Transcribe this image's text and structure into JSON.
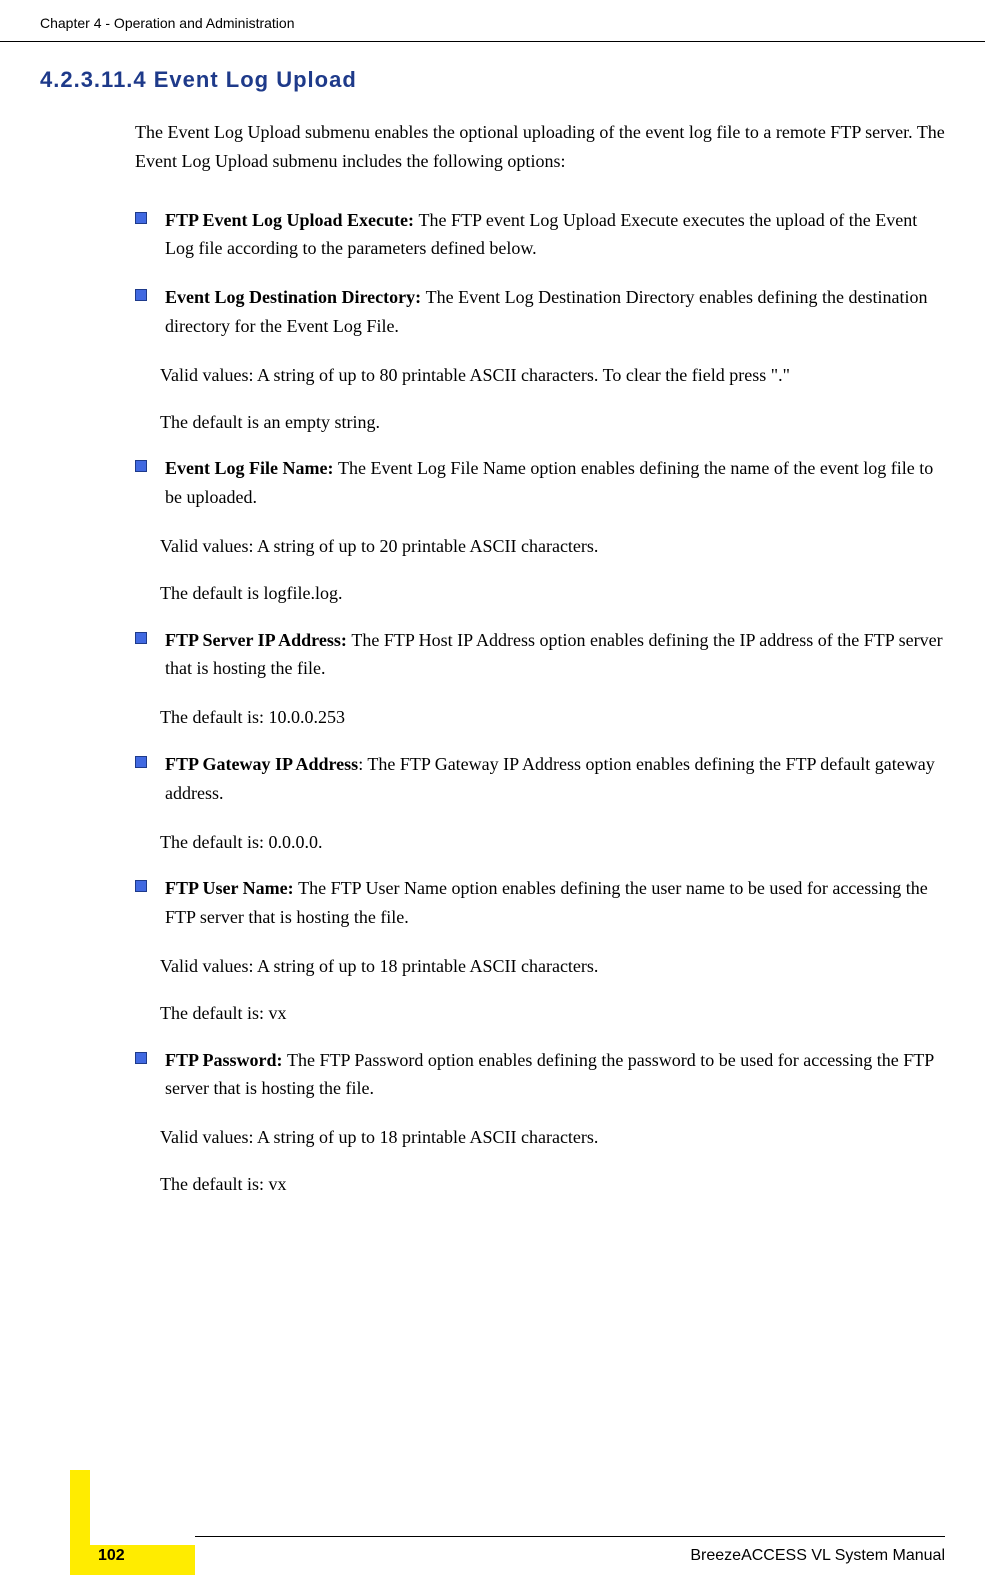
{
  "header": {
    "chapter_text": "Chapter 4 - Operation and Administration"
  },
  "section": {
    "number_title": "4.2.3.11.4 Event Log Upload"
  },
  "intro": "The Event Log Upload submenu enables the optional uploading of the event log file to a remote FTP server. The Event Log Upload submenu includes the following options:",
  "items": [
    {
      "title": "FTP Event Log Upload Execute: ",
      "desc": "The FTP event Log Upload Execute executes the upload of the Event Log file according to the parameters defined below.",
      "paras": []
    },
    {
      "title": "Event Log Destination Directory: ",
      "desc": "The Event Log Destination Directory enables defining the destination directory for the Event Log File.",
      "paras": [
        "Valid values: A string of up to 80 printable ASCII characters. To clear the field press \".\"",
        "The default is an empty string."
      ]
    },
    {
      "title": "Event Log File Name: ",
      "desc": "The Event Log File Name option enables defining the name of the event log file to be uploaded.",
      "paras": [
        "Valid values: A string of up to 20 printable ASCII characters.",
        "The default is logfile.log."
      ]
    },
    {
      "title": "FTP Server IP Address: ",
      "desc": "The FTP Host IP Address option enables defining the IP address of the FTP server that is hosting the file.",
      "paras": [
        "The default is: 10.0.0.253"
      ]
    },
    {
      "title": "FTP Gateway IP Address",
      "desc": ": The FTP Gateway IP Address option enables defining the FTP default gateway address.",
      "paras": [
        "The default is: 0.0.0.0."
      ]
    },
    {
      "title": "FTP User Name: ",
      "desc": "The FTP User Name option enables defining the user name to be used for accessing the FTP server that is hosting the file.",
      "paras": [
        "Valid values: A string of up to 18 printable ASCII characters.",
        "The default is: vx"
      ]
    },
    {
      "title": "FTP Password: ",
      "desc": "The FTP Password option enables defining the password to be used for accessing the FTP server that is hosting the file.",
      "paras": [
        "Valid values: A string of up to 18 printable ASCII characters.",
        "The default is: vx"
      ]
    }
  ],
  "footer": {
    "manual_name": "BreezeACCESS VL System Manual",
    "page_number": "102"
  }
}
